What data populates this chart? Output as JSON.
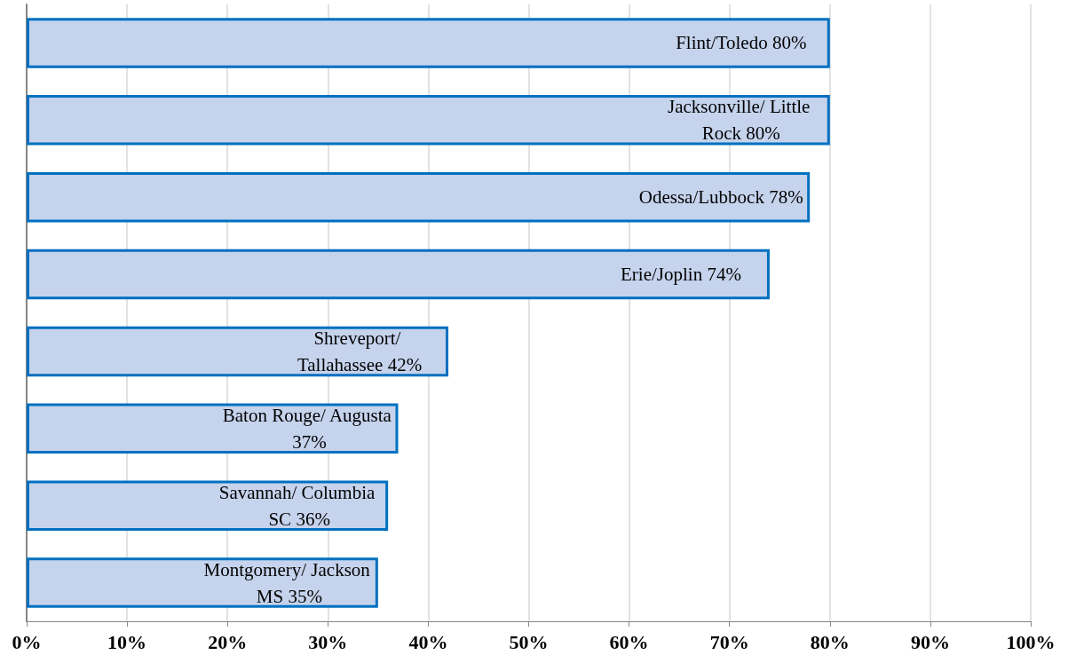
{
  "chart_data": {
    "type": "bar",
    "orientation": "horizontal",
    "categories": [
      "Flint/Toledo",
      "Jacksonville/ Little Rock",
      "Odessa/Lubbock",
      "Erie/Joplin",
      "Shreveport/ Tallahassee",
      "Baton Rouge/ Augusta",
      "Savannah/ Columbia SC",
      "Montgomery/ Jackson MS"
    ],
    "values": [
      80,
      80,
      78,
      74,
      42,
      37,
      36,
      35
    ],
    "value_labels": [
      "80%",
      "80%",
      "78%",
      "74%",
      "42%",
      "37%",
      "36%",
      "35%"
    ],
    "color": "#c5d3ec",
    "xlim": [
      0,
      100
    ],
    "xticks": [
      {
        "value": 0,
        "label": "0%"
      },
      {
        "value": 10,
        "label": "10%"
      },
      {
        "value": 20,
        "label": "20%"
      },
      {
        "value": 30,
        "label": "30%"
      },
      {
        "value": 40,
        "label": "40%"
      },
      {
        "value": 50,
        "label": "50%"
      },
      {
        "value": 60,
        "label": "60%"
      },
      {
        "value": 70,
        "label": "70%"
      },
      {
        "value": 80,
        "label": "80%"
      },
      {
        "value": 90,
        "label": "90%"
      },
      {
        "value": 100,
        "label": "100%"
      }
    ],
    "grid": "x",
    "tick_labels": "x"
  }
}
